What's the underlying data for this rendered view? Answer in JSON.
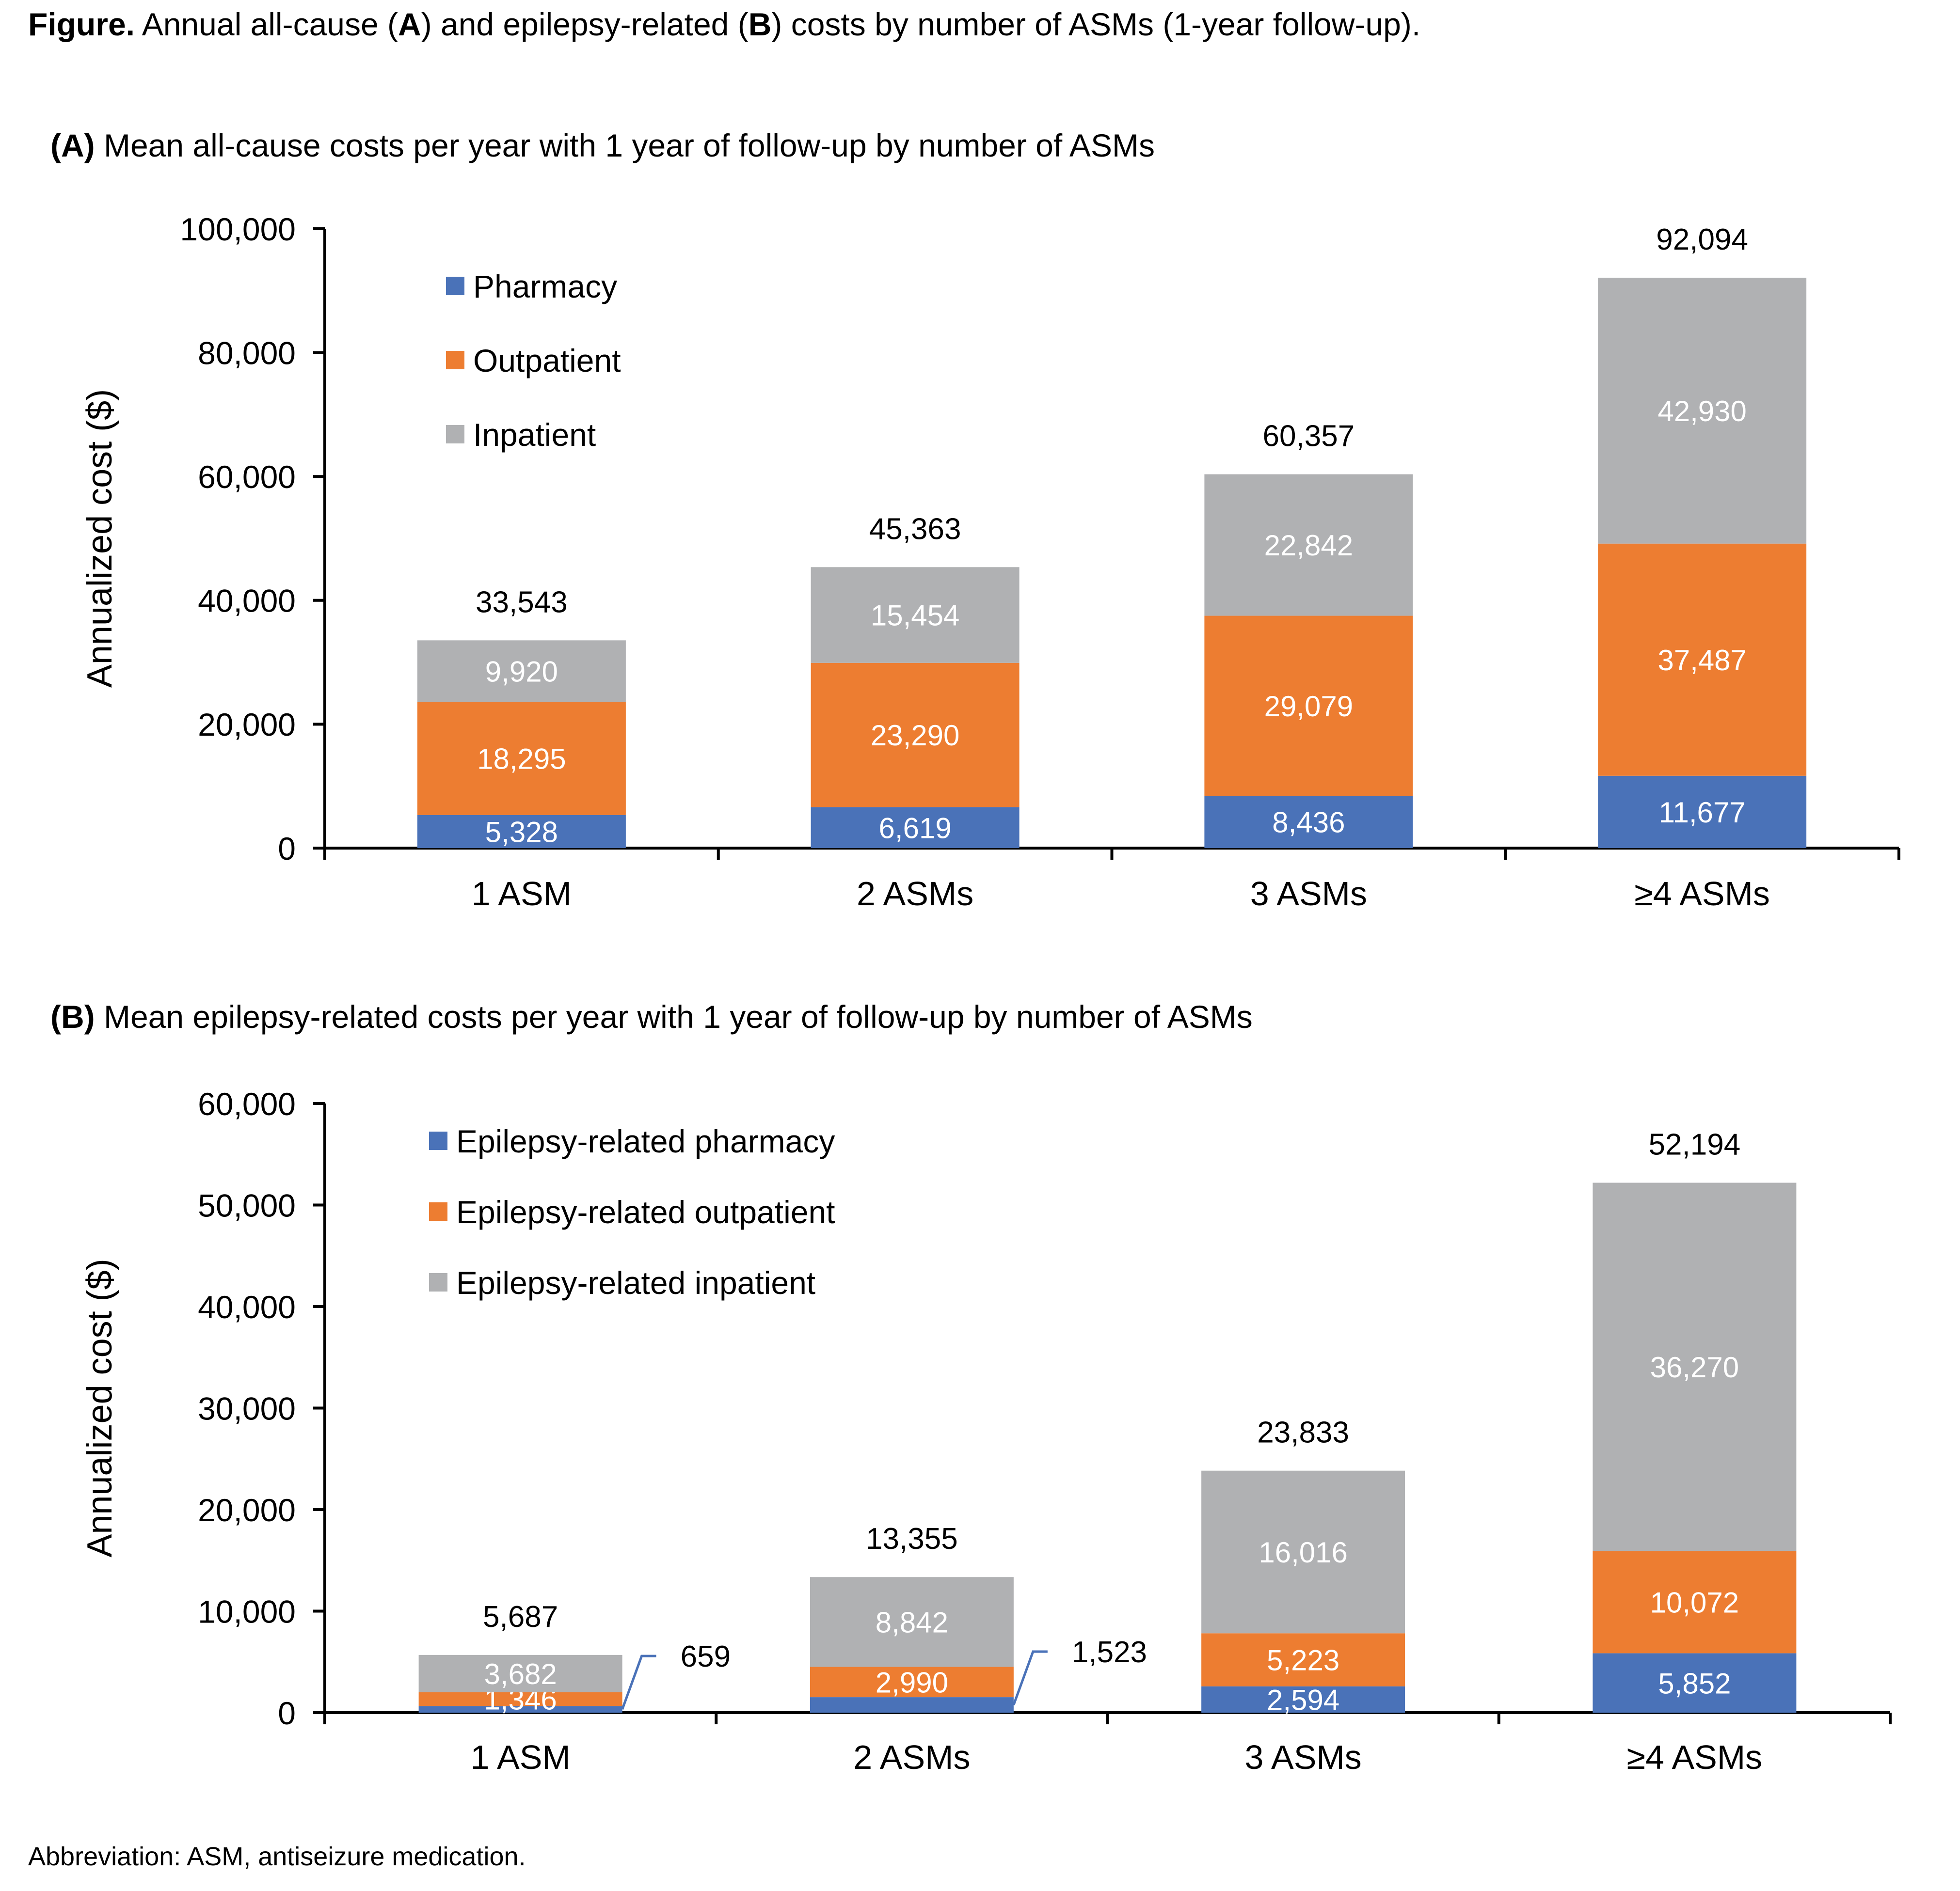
{
  "figure": {
    "label": "Figure.",
    "title_parts": [
      "Annual all-cause (",
      "A",
      ") and epilepsy-related (",
      "B",
      ") costs by number of ASMs (1-year follow-up)."
    ]
  },
  "footnote": "Abbreviation: ASM, antiseizure medication.",
  "colors": {
    "pharmacy": "#4a72b8",
    "outpatient": "#ed7d31",
    "inpatient": "#b0b1b3",
    "axis": "#000000",
    "segment_label": "#ffffff",
    "callout_line": "#4a72b8"
  },
  "chart_data": [
    {
      "id": "A",
      "type": "bar",
      "stacked": true,
      "panel_label": "(A)",
      "title": "Mean all-cause costs per year with 1 year of follow-up by number of ASMs",
      "xlabel": "",
      "ylabel": "Annualized cost ($)",
      "ylim": [
        0,
        100000
      ],
      "yticks": [
        0,
        20000,
        40000,
        60000,
        80000,
        100000
      ],
      "ytick_labels": [
        "0",
        "20,000",
        "40,000",
        "60,000",
        "80,000",
        "100,000"
      ],
      "categories": [
        "1 ASM",
        "2 ASMs",
        "3 ASMs",
        "≥4 ASMs"
      ],
      "legend_position": "top-left",
      "series": [
        {
          "name": "Pharmacy",
          "color_key": "pharmacy",
          "values": [
            5328,
            6619,
            8436,
            11677
          ],
          "labels": [
            "5,328",
            "6,619",
            "8,436",
            "11,677"
          ]
        },
        {
          "name": "Outpatient",
          "color_key": "outpatient",
          "values": [
            18295,
            23290,
            29079,
            37487
          ],
          "labels": [
            "18,295",
            "23,290",
            "29,079",
            "37,487"
          ]
        },
        {
          "name": "Inpatient",
          "color_key": "inpatient",
          "values": [
            9920,
            15454,
            22842,
            42930
          ],
          "labels": [
            "9,920",
            "15,454",
            "22,842",
            "42,930"
          ]
        }
      ],
      "totals": [
        33543,
        45363,
        60357,
        92094
      ],
      "total_labels": [
        "33,543",
        "45,363",
        "60,357",
        "92,094"
      ],
      "callouts": []
    },
    {
      "id": "B",
      "type": "bar",
      "stacked": true,
      "panel_label": "(B)",
      "title": "Mean epilepsy-related costs per year with 1 year of follow-up by number of ASMs",
      "xlabel": "",
      "ylabel": "Annualized cost ($)",
      "ylim": [
        0,
        60000
      ],
      "yticks": [
        0,
        10000,
        20000,
        30000,
        40000,
        50000,
        60000
      ],
      "ytick_labels": [
        "0",
        "10,000",
        "20,000",
        "30,000",
        "40,000",
        "50,000",
        "60,000"
      ],
      "categories": [
        "1 ASM",
        "2 ASMs",
        "3 ASMs",
        "≥4 ASMs"
      ],
      "legend_position": "top-left",
      "series": [
        {
          "name": "Epilepsy-related pharmacy",
          "color_key": "pharmacy",
          "values": [
            659,
            1523,
            2594,
            5852
          ],
          "labels": [
            "",
            "",
            "2,594",
            "5,852"
          ]
        },
        {
          "name": "Epilepsy-related outpatient",
          "color_key": "outpatient",
          "values": [
            1346,
            2990,
            5223,
            10072
          ],
          "labels": [
            "1,346",
            "2,990",
            "5,223",
            "10,072"
          ]
        },
        {
          "name": "Epilepsy-related inpatient",
          "color_key": "inpatient",
          "values": [
            3682,
            8842,
            16016,
            36270
          ],
          "labels": [
            "3,682",
            "8,842",
            "16,016",
            "36,270"
          ]
        }
      ],
      "totals": [
        5687,
        13355,
        23833,
        52194
      ],
      "total_labels": [
        "5,687",
        "13,355",
        "23,833",
        "52,194"
      ],
      "callouts": [
        {
          "category_index": 0,
          "series_index": 0,
          "label": "659"
        },
        {
          "category_index": 1,
          "series_index": 0,
          "label": "1,523"
        }
      ]
    }
  ]
}
